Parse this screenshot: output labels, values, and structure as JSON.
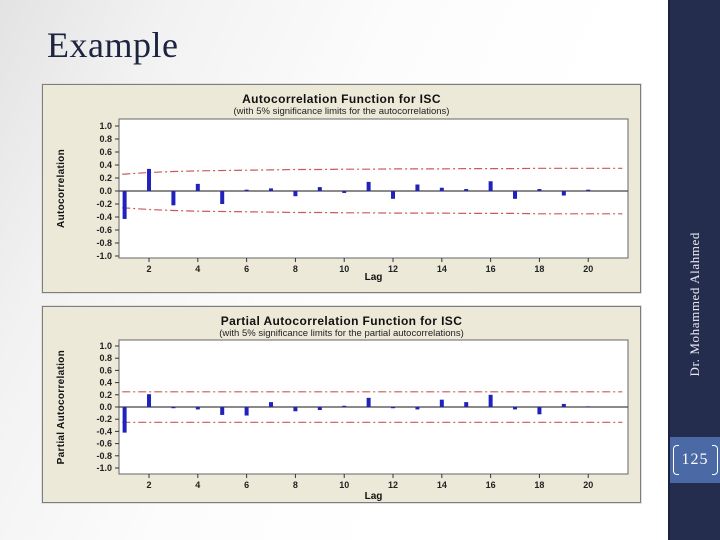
{
  "slide": {
    "title": "Example",
    "author": "Dr. Mohammed Alahmed",
    "page_number": "125"
  },
  "colors": {
    "sidebar_navy": "#242d4e",
    "page_badge_blue": "#4a69a5",
    "panel_beige": "#ece9d8",
    "bar_blue": "#2121bd",
    "limit_red": "#c75b5b",
    "title_navy": "#1c2440"
  },
  "chart_data": [
    {
      "type": "bar",
      "title": "Autocorrelation Function for ISC",
      "subtitle": "(with 5% significance limits for the autocorrelations)",
      "xlabel": "Lag",
      "ylabel": "Autocorrelation",
      "ylim": [
        -1.0,
        1.0
      ],
      "ytick_labels": [
        "1.0",
        "0.8",
        "0.6",
        "0.4",
        "0.2",
        "0.0",
        "-0.2",
        "-0.4",
        "-0.6",
        "-0.8",
        "-1.0"
      ],
      "yticks": [
        1.0,
        0.8,
        0.6,
        0.4,
        0.2,
        0.0,
        -0.2,
        -0.4,
        -0.6,
        -0.8,
        -1.0
      ],
      "xticks": [
        2,
        4,
        6,
        8,
        10,
        12,
        14,
        16,
        18,
        20
      ],
      "lags": [
        1,
        2,
        3,
        4,
        5,
        6,
        7,
        8,
        9,
        10,
        11,
        12,
        13,
        14,
        15,
        16,
        17,
        18,
        19,
        20
      ],
      "values": [
        -0.43,
        0.34,
        -0.22,
        0.11,
        -0.2,
        0.02,
        0.04,
        -0.08,
        0.06,
        -0.03,
        0.14,
        -0.12,
        0.1,
        0.05,
        0.03,
        0.15,
        -0.12,
        0.03,
        -0.07,
        0.02
      ],
      "significance_limits": {
        "upper": [
          0.26,
          0.285,
          0.3,
          0.31,
          0.315,
          0.32,
          0.325,
          0.33,
          0.33,
          0.335,
          0.335,
          0.34,
          0.34,
          0.34,
          0.345,
          0.345,
          0.345,
          0.35,
          0.35,
          0.35
        ],
        "lower": [
          -0.26,
          -0.285,
          -0.3,
          -0.31,
          -0.315,
          -0.32,
          -0.325,
          -0.33,
          -0.33,
          -0.335,
          -0.335,
          -0.34,
          -0.34,
          -0.34,
          -0.345,
          -0.345,
          -0.345,
          -0.35,
          -0.35,
          -0.35
        ]
      },
      "bar_color": "#2121bd",
      "limit_color": "#c75b5b",
      "legend": "none",
      "grid": false
    },
    {
      "type": "bar",
      "title": "Partial Autocorrelation Function for ISC",
      "subtitle": "(with 5% significance limits for the partial autocorrelations)",
      "xlabel": "Lag",
      "ylabel": "Partial Autocorrelation",
      "ylim": [
        -1.0,
        1.0
      ],
      "ytick_labels": [
        "1.0",
        "0.8",
        "0.6",
        "0.4",
        "0.2",
        "0.0",
        "-0.2",
        "-0.4",
        "-0.6",
        "-0.8",
        "-1.0"
      ],
      "yticks": [
        1.0,
        0.8,
        0.6,
        0.4,
        0.2,
        0.0,
        -0.2,
        -0.4,
        -0.6,
        -0.8,
        -1.0
      ],
      "xticks": [
        2,
        4,
        6,
        8,
        10,
        12,
        14,
        16,
        18,
        20
      ],
      "lags": [
        1,
        2,
        3,
        4,
        5,
        6,
        7,
        8,
        9,
        10,
        11,
        12,
        13,
        14,
        15,
        16,
        17,
        18,
        19,
        20
      ],
      "values": [
        -0.42,
        0.21,
        -0.02,
        -0.04,
        -0.13,
        -0.14,
        0.08,
        -0.07,
        -0.05,
        0.02,
        0.15,
        -0.02,
        -0.04,
        0.12,
        0.08,
        0.2,
        -0.04,
        -0.12,
        0.05,
        0.01
      ],
      "significance_limits": {
        "upper": [
          0.25,
          0.25,
          0.25,
          0.25,
          0.25,
          0.25,
          0.25,
          0.25,
          0.25,
          0.25,
          0.25,
          0.25,
          0.25,
          0.25,
          0.25,
          0.25,
          0.25,
          0.25,
          0.25,
          0.25
        ],
        "lower": [
          -0.25,
          -0.25,
          -0.25,
          -0.25,
          -0.25,
          -0.25,
          -0.25,
          -0.25,
          -0.25,
          -0.25,
          -0.25,
          -0.25,
          -0.25,
          -0.25,
          -0.25,
          -0.25,
          -0.25,
          -0.25,
          -0.25,
          -0.25
        ]
      },
      "bar_color": "#2121bd",
      "limit_color": "#c75b5b",
      "legend": "none",
      "grid": false
    }
  ]
}
